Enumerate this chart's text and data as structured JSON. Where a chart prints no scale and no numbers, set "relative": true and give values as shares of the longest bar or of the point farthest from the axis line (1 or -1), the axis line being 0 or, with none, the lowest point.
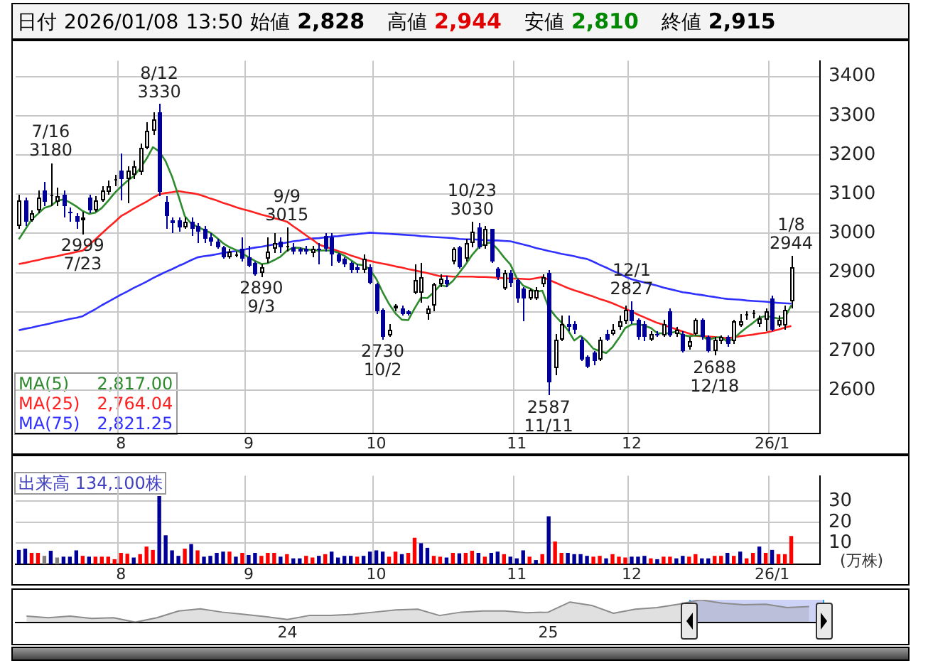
{
  "chart_data": [
    {
      "type": "candlestick",
      "title": "日付 2026/01/08 13:50 始値 2,828 高値 2,944 安値 2,810 終値 2,915",
      "categories": [
        null,
        null,
        null,
        null,
        null,
        null,
        null,
        null,
        null,
        null,
        null,
        null,
        null,
        null,
        null,
        null,
        "8",
        null,
        null,
        null,
        null,
        null,
        null,
        null,
        null,
        null,
        null,
        null,
        null,
        null,
        null,
        null,
        null,
        null,
        null,
        null,
        "9",
        null,
        null,
        null,
        null,
        null,
        null,
        null,
        null,
        null,
        null,
        null,
        null,
        null,
        null,
        null,
        null,
        null,
        null,
        null,
        "10",
        null,
        null,
        null,
        null,
        null,
        null,
        null,
        null,
        null,
        null,
        null,
        null,
        null,
        null,
        null,
        null,
        null,
        null,
        null,
        null,
        null,
        "11",
        null,
        null,
        null,
        null,
        null,
        null,
        null,
        null,
        null,
        null,
        null,
        null,
        null,
        null,
        null,
        null,
        null,
        "12",
        null,
        null,
        null,
        null,
        null,
        null,
        null,
        null,
        null,
        null,
        null,
        null,
        null,
        null,
        null,
        null,
        null,
        null,
        null,
        null,
        null,
        "26/1",
        null,
        null,
        null
      ],
      "ohlc": [
        [
          3020,
          3100,
          3010,
          3085
        ],
        [
          3085,
          3090,
          3020,
          3030
        ],
        [
          3035,
          3060,
          3030,
          3050
        ],
        [
          3060,
          3110,
          3050,
          3090
        ],
        [
          3110,
          3130,
          3070,
          3080
        ],
        [
          3095,
          3180,
          3070,
          3100
        ],
        [
          3080,
          3115,
          3070,
          3095
        ],
        [
          3100,
          3110,
          3040,
          3070
        ],
        [
          3055,
          3065,
          3030,
          3050
        ],
        [
          3045,
          3050,
          3010,
          3030
        ],
        [
          3035,
          3055,
          2999,
          3040
        ],
        [
          3090,
          3100,
          3050,
          3060
        ],
        [
          3060,
          3095,
          3055,
          3085
        ],
        [
          3085,
          3120,
          3080,
          3110
        ],
        [
          3105,
          3135,
          3100,
          3120
        ],
        [
          3135,
          3150,
          3120,
          3140
        ],
        [
          3160,
          3205,
          3085,
          3140
        ],
        [
          3140,
          3170,
          3078,
          3160
        ],
        [
          3150,
          3185,
          3140,
          3170
        ],
        [
          3155,
          3230,
          3150,
          3220
        ],
        [
          3220,
          3285,
          3215,
          3260
        ],
        [
          3260,
          3310,
          3250,
          3290
        ],
        [
          3310,
          3330,
          3095,
          3105
        ],
        [
          3080,
          3095,
          3011,
          3045
        ],
        [
          3035,
          3040,
          3000,
          3025
        ],
        [
          3035,
          3040,
          3005,
          3015
        ],
        [
          3015,
          3040,
          3010,
          3030
        ],
        [
          3030,
          3040,
          2995,
          3010
        ],
        [
          3020,
          3028,
          2975,
          3005
        ],
        [
          3010,
          3020,
          2975,
          2985
        ],
        [
          2990,
          3000,
          2970,
          2980
        ],
        [
          2980,
          2985,
          2960,
          2965
        ],
        [
          2965,
          2970,
          2935,
          2940
        ],
        [
          2940,
          2960,
          2935,
          2955
        ],
        [
          2945,
          2955,
          2940,
          2948
        ],
        [
          2960,
          2990,
          2930,
          2935
        ],
        [
          2940,
          2970,
          2915,
          2918
        ],
        [
          2925,
          2930,
          2893,
          2895
        ],
        [
          2900,
          2920,
          2890,
          2915
        ],
        [
          2935,
          2990,
          2925,
          2955
        ],
        [
          2960,
          3000,
          2950,
          2975
        ],
        [
          2980,
          2990,
          2950,
          2965
        ],
        [
          2965,
          3015,
          2955,
          2970
        ],
        [
          2965,
          2975,
          2945,
          2955
        ],
        [
          2960,
          2965,
          2945,
          2952
        ],
        [
          2962,
          2970,
          2945,
          2955
        ],
        [
          2950,
          2970,
          2940,
          2960
        ],
        [
          2960,
          2975,
          2920,
          2958
        ],
        [
          2995,
          3000,
          2955,
          2960
        ],
        [
          2990,
          3000,
          2917,
          2945
        ],
        [
          2945,
          2950,
          2925,
          2930
        ],
        [
          2935,
          2940,
          2915,
          2920
        ],
        [
          2925,
          2930,
          2900,
          2905
        ],
        [
          2915,
          2920,
          2898,
          2905
        ],
        [
          2905,
          2945,
          2900,
          2935
        ],
        [
          2915,
          2920,
          2870,
          2875
        ],
        [
          2870,
          2875,
          2795,
          2800
        ],
        [
          2805,
          2810,
          2730,
          2735
        ],
        [
          2740,
          2770,
          2735,
          2755
        ],
        [
          2810,
          2820,
          2800,
          2815
        ],
        [
          2808,
          2815,
          2790,
          2795
        ],
        [
          2800,
          2805,
          2790,
          2795
        ],
        [
          2850,
          2920,
          2845,
          2883
        ],
        [
          2850,
          2925,
          2823,
          2890
        ],
        [
          2795,
          2815,
          2780,
          2810
        ],
        [
          2815,
          2875,
          2800,
          2870
        ],
        [
          2870,
          2895,
          2865,
          2885
        ],
        [
          2880,
          2892,
          2865,
          2870
        ],
        [
          2930,
          2965,
          2920,
          2960
        ],
        [
          2965,
          2970,
          2910,
          2915
        ],
        [
          2935,
          2985,
          2930,
          2975
        ],
        [
          2975,
          3030,
          2965,
          3005
        ],
        [
          3015,
          3025,
          2960,
          2965
        ],
        [
          2970,
          3018,
          2960,
          3010
        ],
        [
          3010,
          3012,
          2925,
          2930
        ],
        [
          2910,
          2915,
          2880,
          2890
        ],
        [
          2860,
          2905,
          2855,
          2900
        ],
        [
          2900,
          2905,
          2865,
          2875
        ],
        [
          2880,
          2885,
          2825,
          2835
        ],
        [
          2860,
          2865,
          2775,
          2835
        ],
        [
          2835,
          2860,
          2830,
          2855
        ],
        [
          2835,
          2865,
          2830,
          2855
        ],
        [
          2870,
          2895,
          2865,
          2890
        ],
        [
          2900,
          2905,
          2587,
          2620
        ],
        [
          2655,
          2745,
          2640,
          2730
        ],
        [
          2730,
          2790,
          2725,
          2770
        ],
        [
          2770,
          2790,
          2750,
          2760
        ],
        [
          2770,
          2775,
          2745,
          2755
        ],
        [
          2730,
          2735,
          2675,
          2680
        ],
        [
          2685,
          2690,
          2655,
          2660
        ],
        [
          2695,
          2700,
          2665,
          2675
        ],
        [
          2680,
          2735,
          2675,
          2730
        ],
        [
          2745,
          2755,
          2725,
          2730
        ],
        [
          2745,
          2770,
          2740,
          2755
        ],
        [
          2760,
          2790,
          2755,
          2775
        ],
        [
          2775,
          2815,
          2770,
          2805
        ],
        [
          2805,
          2827,
          2770,
          2775
        ],
        [
          2780,
          2785,
          2728,
          2735
        ],
        [
          2770,
          2775,
          2725,
          2735
        ],
        [
          2730,
          2750,
          2725,
          2745
        ],
        [
          2745,
          2750,
          2735,
          2740
        ],
        [
          2740,
          2780,
          2735,
          2770
        ],
        [
          2800,
          2810,
          2735,
          2740
        ],
        [
          2745,
          2760,
          2735,
          2755
        ],
        [
          2745,
          2750,
          2695,
          2700
        ],
        [
          2710,
          2735,
          2705,
          2725
        ],
        [
          2745,
          2785,
          2740,
          2780
        ],
        [
          2780,
          2785,
          2730,
          2735
        ],
        [
          2735,
          2740,
          2695,
          2700
        ],
        [
          2700,
          2735,
          2688,
          2730
        ],
        [
          2725,
          2740,
          2720,
          2735
        ],
        [
          2735,
          2740,
          2710,
          2720
        ],
        [
          2725,
          2780,
          2720,
          2775
        ],
        [
          2765,
          2795,
          2760,
          2775
        ],
        [
          2790,
          2800,
          2780,
          2795
        ],
        [
          2795,
          2805,
          2785,
          2797
        ],
        [
          2770,
          2790,
          2760,
          2785
        ],
        [
          2780,
          2810,
          2750,
          2800
        ],
        [
          2835,
          2840,
          2750,
          2755
        ],
        [
          2765,
          2790,
          2760,
          2780
        ],
        [
          2765,
          2815,
          2755,
          2805
        ],
        [
          2828,
          2944,
          2810,
          2915
        ]
      ],
      "series": [
        {
          "type": "line",
          "name": "MA(5) 2,817.00",
          "color": "#2e8b2e",
          "values": [
            2985,
            3010,
            3035,
            3050,
            3065,
            3070,
            3083,
            3087,
            3079,
            3069,
            3057,
            3050,
            3053,
            3065,
            3083,
            3103,
            3119,
            3134,
            3146,
            3166,
            3190,
            3220,
            3209,
            3184,
            3145,
            3096,
            3044,
            3025,
            3017,
            3009,
            3002,
            2989,
            2975,
            2965,
            2958,
            2949,
            2939,
            2930,
            2922,
            2924,
            2932,
            2941,
            2956,
            2964,
            2963,
            2959,
            2958,
            2956,
            2957,
            2956,
            2951,
            2943,
            2932,
            2921,
            2919,
            2908,
            2884,
            2850,
            2820,
            2796,
            2780,
            2779,
            2809,
            2836,
            2835,
            2850,
            2868,
            2865,
            2879,
            2900,
            2921,
            2945,
            2964,
            2974,
            2977,
            2960,
            2939,
            2921,
            2886,
            2867,
            2860,
            2851,
            2854,
            2811,
            2790,
            2773,
            2754,
            2727,
            2739,
            2725,
            2706,
            2700,
            2695,
            2710,
            2733,
            2759,
            2768,
            2769,
            2765,
            2759,
            2746,
            2745,
            2746,
            2750,
            2741,
            2738,
            2740,
            2739,
            2728,
            2734,
            2736,
            2724,
            2732,
            2747,
            2760,
            2772,
            2785,
            2790,
            2786,
            2783,
            2785,
            2817
          ]
        },
        {
          "type": "line",
          "name": "MA(25) 2,764.04",
          "color": "#ff2020",
          "values": [
            2922,
            2925,
            2929,
            2932,
            2936,
            2939,
            2942,
            2946,
            2949,
            2953,
            2956,
            2971,
            2985,
            3000,
            3015,
            3029,
            3044,
            3053,
            3063,
            3072,
            3081,
            3091,
            3100,
            3103,
            3105,
            3108,
            3105,
            3103,
            3100,
            3095,
            3089,
            3084,
            3078,
            3073,
            3067,
            3062,
            3058,
            3053,
            3048,
            3044,
            3039,
            3035,
            3030,
            3018,
            3007,
            2995,
            2984,
            2972,
            2966,
            2961,
            2955,
            2950,
            2944,
            2939,
            2933,
            2930,
            2926,
            2923,
            2920,
            2916,
            2913,
            2909,
            2906,
            2902,
            2899,
            2895,
            2891,
            2891,
            2890,
            2890,
            2890,
            2890,
            2889,
            2889,
            2888,
            2887,
            2886,
            2885,
            2885,
            2884,
            2883,
            2886,
            2889,
            2882,
            2875,
            2868,
            2861,
            2855,
            2850,
            2844,
            2839,
            2833,
            2828,
            2822,
            2815,
            2808,
            2801,
            2793,
            2786,
            2779,
            2772,
            2767,
            2761,
            2756,
            2750,
            2745,
            2739,
            2738,
            2737,
            2736,
            2734,
            2733,
            2735,
            2738,
            2740,
            2742,
            2745,
            2747,
            2751,
            2755,
            2760,
            2764
          ]
        },
        {
          "type": "line",
          "name": "MA(75) 2,821.25",
          "color": "#3030ff",
          "values": [
            2753,
            2757,
            2760,
            2764,
            2767,
            2771,
            2775,
            2778,
            2782,
            2785,
            2789,
            2798,
            2807,
            2817,
            2826,
            2835,
            2844,
            2852,
            2861,
            2869,
            2877,
            2886,
            2894,
            2902,
            2909,
            2917,
            2924,
            2932,
            2939,
            2942,
            2944,
            2947,
            2950,
            2953,
            2955,
            2958,
            2961,
            2964,
            2966,
            2969,
            2972,
            2974,
            2977,
            2980,
            2982,
            2985,
            2987,
            2988,
            2990,
            2992,
            2993,
            2995,
            2997,
            2998,
            3000,
            3002,
            3001,
            3000,
            2999,
            2998,
            2997,
            2996,
            2995,
            2993,
            2992,
            2991,
            2990,
            2989,
            2988,
            2986,
            2985,
            2985,
            2984,
            2983,
            2982,
            2982,
            2981,
            2980,
            2976,
            2972,
            2968,
            2963,
            2959,
            2955,
            2952,
            2948,
            2945,
            2942,
            2938,
            2935,
            2928,
            2920,
            2913,
            2905,
            2898,
            2890,
            2883,
            2879,
            2875,
            2871,
            2867,
            2862,
            2858,
            2854,
            2850,
            2848,
            2845,
            2843,
            2840,
            2838,
            2835,
            2833,
            2832,
            2831,
            2829,
            2828,
            2827,
            2826,
            2824,
            2823,
            2822,
            2821
          ]
        }
      ],
      "ylim": [
        2490,
        3440
      ],
      "yticks": [
        2600,
        2700,
        2800,
        2900,
        3000,
        3100,
        3200,
        3300,
        3400
      ],
      "grid": true,
      "legend": "bottom left",
      "annotations": [
        {
          "text": "7/16 3180",
          "y": 3180
        },
        {
          "text": "2999 7/23",
          "y": 2999
        },
        {
          "text": "8/12 3330",
          "y": 3330
        },
        {
          "text": "2890 9/3",
          "y": 2890
        },
        {
          "text": "9/9 3015",
          "y": 3015
        },
        {
          "text": "2730 10/2",
          "y": 2730
        },
        {
          "text": "10/23 3030",
          "y": 3030
        },
        {
          "text": "2587 11/11",
          "y": 2587
        },
        {
          "text": "12/1 2827",
          "y": 2827
        },
        {
          "text": "2688 12/18",
          "y": 2688
        },
        {
          "text": "1/8 2944",
          "y": 2944
        }
      ]
    },
    {
      "type": "bar",
      "title": "出来高 134,100株",
      "ylabel": "(万株)",
      "categories": [
        null,
        null,
        null,
        null,
        null,
        null,
        null,
        null,
        null,
        null,
        null,
        null,
        null,
        null,
        null,
        null,
        "8",
        null,
        null,
        null,
        null,
        null,
        null,
        null,
        null,
        null,
        null,
        null,
        null,
        null,
        null,
        null,
        null,
        null,
        null,
        null,
        "9",
        null,
        null,
        null,
        null,
        null,
        null,
        null,
        null,
        null,
        null,
        null,
        null,
        null,
        null,
        null,
        null,
        null,
        null,
        null,
        "10",
        null,
        null,
        null,
        null,
        null,
        null,
        null,
        null,
        null,
        null,
        null,
        null,
        null,
        null,
        null,
        null,
        null,
        null,
        null,
        null,
        null,
        "11",
        null,
        null,
        null,
        null,
        null,
        null,
        null,
        null,
        null,
        null,
        null,
        null,
        null,
        null,
        null,
        null,
        null,
        "12",
        null,
        null,
        null,
        null,
        null,
        null,
        null,
        null,
        null,
        null,
        null,
        null,
        null,
        null,
        null,
        null,
        null,
        null,
        null,
        null,
        null,
        "26/1",
        null,
        null,
        null
      ],
      "values": [
        6.8,
        7.4,
        5.4,
        5.4,
        4.0,
        6.4,
        3.2,
        3.6,
        3.6,
        6.6,
        4.0,
        3.6,
        3.6,
        3.6,
        3.6,
        2.4,
        5.4,
        5.0,
        3.2,
        4.8,
        8.4,
        6.8,
        32.4,
        13.8,
        6.6,
        4.0,
        7.4,
        9.6,
        6.6,
        3.6,
        4.0,
        5.4,
        6.0,
        6.0,
        3.6,
        5.4,
        4.4,
        5.4,
        4.0,
        5.4,
        5.4,
        3.6,
        4.8,
        2.8,
        2.8,
        4.0,
        3.2,
        4.0,
        4.8,
        6.0,
        3.2,
        4.0,
        4.0,
        3.6,
        4.0,
        6.0,
        6.6,
        6.0,
        3.6,
        6.0,
        4.8,
        5.4,
        12.6,
        10.0,
        7.8,
        4.0,
        3.6,
        3.2,
        5.4,
        5.2,
        5.4,
        6.4,
        5.4,
        3.6,
        5.4,
        6.0,
        4.8,
        3.6,
        2.8,
        6.6,
        3.6,
        2.0,
        4.8,
        22.8,
        10.8,
        5.4,
        5.4,
        4.8,
        4.8,
        4.0,
        3.6,
        4.0,
        2.8,
        4.8,
        3.6,
        3.2,
        3.6,
        3.6,
        4.0,
        2.8,
        2.4,
        3.6,
        3.6,
        2.8,
        4.0,
        3.6,
        4.8,
        2.8,
        2.8,
        4.0,
        4.0,
        5.4,
        4.0,
        6.0,
        2.8,
        5.4,
        8.4,
        5.4,
        6.8,
        4.8,
        4.8,
        13.4
      ],
      "colors": [
        "#000099",
        "#000099",
        "#ff0000",
        "#ff0000",
        "#808080",
        "#000099",
        "#808080",
        "#000099",
        "#000099",
        "#000099",
        "#ff0000",
        "#000099",
        "#ff0000",
        "#ff0000",
        "#ff0000",
        "#ff0000",
        "#ff0000",
        "#ff0000",
        "#000099",
        "#ff0000",
        "#ff0000",
        "#ff0000",
        "#000099",
        "#000099",
        "#000099",
        "#000099",
        "#ff0000",
        "#000099",
        "#ff0000",
        "#000099",
        "#000099",
        "#000099",
        "#000099",
        "#ff0000",
        "#000099",
        "#ff0000",
        "#000099",
        "#000099",
        "#ff0000",
        "#ff0000",
        "#ff0000",
        "#000099",
        "#ff0000",
        "#000099",
        "#000099",
        "#ff0000",
        "#ff0000",
        "#000099",
        "#ff0000",
        "#000099",
        "#000099",
        "#000099",
        "#000099",
        "#ff0000",
        "#000099",
        "#000099",
        "#000099",
        "#000099",
        "#ff0000",
        "#ff0000",
        "#000099",
        "#ff0000",
        "#ff0000",
        "#000099",
        "#000099",
        "#ff0000",
        "#ff0000",
        "#000099",
        "#ff0000",
        "#000099",
        "#ff0000",
        "#ff0000",
        "#000099",
        "#ff0000",
        "#000099",
        "#000099",
        "#ff0000",
        "#000099",
        "#000099",
        "#000099",
        "#ff0000",
        "#000099",
        "#ff0000",
        "#000099",
        "#ff0000",
        "#ff0000",
        "#000099",
        "#000099",
        "#000099",
        "#000099",
        "#ff0000",
        "#ff0000",
        "#000099",
        "#ff0000",
        "#ff0000",
        "#ff0000",
        "#000099",
        "#000099",
        "#000099",
        "#ff0000",
        "#000099",
        "#ff0000",
        "#ff0000",
        "#000099",
        "#000099",
        "#ff0000",
        "#ff0000",
        "#000099",
        "#000099",
        "#ff0000",
        "#ff0000",
        "#000099",
        "#ff0000",
        "#000099",
        "#ff0000",
        "#ff0000",
        "#000099",
        "#ff0000",
        "#000099",
        "#ff0000",
        "#ff0000",
        "#ff0000"
      ],
      "ylim": [
        0,
        42
      ],
      "yticks": [
        10,
        20,
        30
      ],
      "grid": true
    },
    {
      "type": "area",
      "relative": true,
      "categories": [
        null,
        null,
        null,
        null,
        null,
        null,
        null,
        null,
        null,
        null,
        null,
        null,
        "24",
        null,
        null,
        null,
        null,
        null,
        null,
        null,
        null,
        null,
        null,
        null,
        "25",
        null,
        null,
        null,
        null,
        null,
        null,
        null,
        null,
        null,
        null,
        null,
        null
      ],
      "series": [
        {
          "color": "#8c8c8c",
          "values": [
            0.27,
            0.2,
            0.27,
            0.17,
            0.2,
            0,
            0.2,
            0.5,
            0.6,
            0.45,
            0.35,
            0.25,
            0.12,
            0.3,
            0.3,
            0.35,
            0.45,
            0.55,
            0.58,
            0.3,
            0.45,
            0.5,
            0.5,
            0.42,
            0.45,
            0.9,
            0.75,
            0.4,
            0.58,
            0.65,
            0.8,
            1,
            0.85,
            0.78,
            0.8,
            0.65,
            0.7
          ]
        }
      ]
    }
  ]
}
